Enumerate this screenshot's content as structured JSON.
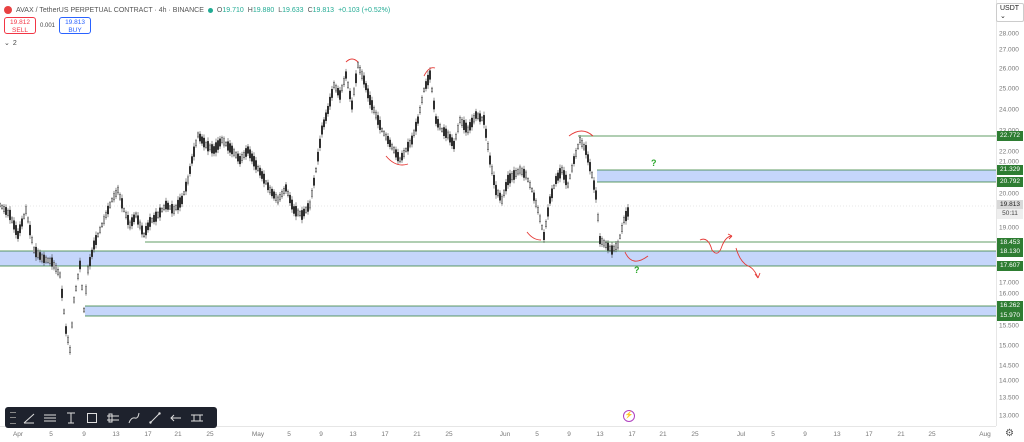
{
  "symbol": {
    "title": "AVAX / TetherUS PERPETUAL CONTRACT · 4h · BINANCE",
    "ohlc": [
      {
        "key": "O",
        "value": "19.710"
      },
      {
        "key": "H",
        "value": "19.880"
      },
      {
        "key": "L",
        "value": "19.633"
      },
      {
        "key": "C",
        "value": "19.813"
      },
      {
        "key": "",
        "value": "+0.103 (+0.52%)"
      }
    ]
  },
  "trade": {
    "sell_price": "19.812",
    "sell_label": "SELL",
    "spread": "0.001",
    "buy_price": "19.813",
    "buy_label": "BUY"
  },
  "indicators": {
    "collapse_glyph": "⌄",
    "count": "2"
  },
  "currency": "USDT",
  "price_axis": {
    "labels": [
      "28.000",
      "27.000",
      "26.000",
      "25.000",
      "24.000",
      "23.000",
      "22.000",
      "21.000",
      "20.000",
      "19.000",
      "17.000",
      "16.000",
      "15.500",
      "15.000",
      "14.500",
      "14.000",
      "13.500",
      "13.000"
    ],
    "tags": [
      "22.772",
      "21.329",
      "20.792",
      "18.453",
      "18.130",
      "17.607",
      "16.262",
      "15.970"
    ],
    "current_price": "19.813",
    "countdown": "50:11"
  },
  "time_axis": [
    "Apr",
    "5",
    "9",
    "13",
    "17",
    "21",
    "25",
    "May",
    "5",
    "9",
    "13",
    "17",
    "21",
    "25",
    "Jun",
    "5",
    "9",
    "13",
    "17",
    "21",
    "25",
    "Jul",
    "5",
    "9",
    "13",
    "17",
    "21",
    "25",
    "Aug"
  ],
  "annotations": {
    "question_mark_1": "?",
    "question_mark_2": "?",
    "flash_icon": "⚡"
  },
  "colors": {
    "zone_fill": "#c5d6fb",
    "zone_line": "#2e7d32",
    "candle": "#222222",
    "drawing_red": "#e53935",
    "annotation_green": "#2ba82b",
    "toolbar_bg": "#1e222d"
  },
  "toolbar": {
    "tools": [
      "trend-line-icon",
      "horizontal-lines-icon",
      "text-cursor-icon",
      "rectangle-icon",
      "parallel-channel-icon",
      "brush-icon",
      "measure-icon",
      "arrow-icon",
      "pattern-icon"
    ]
  }
}
